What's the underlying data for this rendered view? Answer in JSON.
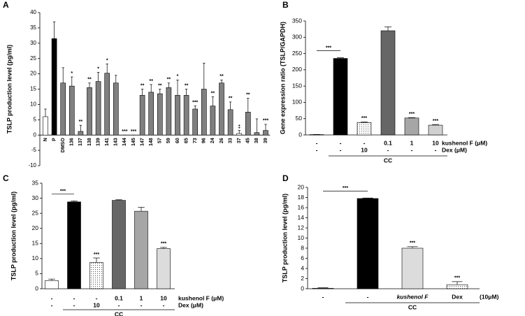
{
  "chart_data": [
    {
      "type": "bar",
      "panel": "A",
      "ylabel": "TSLP production level (pg/ml)",
      "ylim": [
        -10,
        40
      ],
      "yticks": [
        -10,
        -5,
        0,
        5,
        10,
        15,
        20,
        25,
        30,
        35,
        40
      ],
      "categories": [
        "N",
        "P",
        "DMSO",
        "136",
        "137",
        "138",
        "139",
        "141",
        "143",
        "144",
        "145",
        "147",
        "148",
        "57",
        "59",
        "60",
        "65",
        "73",
        "96",
        "24",
        "26",
        "33",
        "37",
        "45",
        "38",
        "39"
      ],
      "values": [
        6,
        31.5,
        17,
        16,
        1.2,
        15.5,
        17.5,
        20.2,
        17,
        0,
        0,
        13,
        14,
        13.5,
        15.5,
        13,
        13,
        8.5,
        15,
        9.5,
        17,
        8.3,
        0.5,
        7.5,
        0.8,
        1.5
      ],
      "errors": [
        2.5,
        5.5,
        5,
        3,
        2,
        1.5,
        3,
        3,
        2.5,
        0,
        0,
        2,
        2.5,
        1.5,
        1.5,
        5,
        2,
        1,
        8.5,
        3,
        1,
        2.5,
        1,
        4.5,
        4.5,
        2
      ],
      "colors": [
        "#ffffff",
        "#000000",
        "#808080",
        "#808080",
        "#808080",
        "#808080",
        "#808080",
        "#808080",
        "#808080",
        "#808080",
        "#808080",
        "#808080",
        "#808080",
        "#808080",
        "#808080",
        "#808080",
        "#808080",
        "#808080",
        "#808080",
        "#808080",
        "#808080",
        "#808080",
        "#ffffff",
        "#808080",
        "#808080",
        "#808080"
      ],
      "annotations": [
        null,
        null,
        null,
        "*",
        "**",
        "**",
        "*",
        "*",
        null,
        "***",
        "***",
        "**",
        "**",
        "**",
        "**",
        "*",
        "**",
        "***",
        null,
        "**",
        "**",
        "**",
        "‡",
        "**",
        null,
        "***"
      ]
    },
    {
      "type": "bar",
      "panel": "B",
      "ylabel": "Gene expression ratio (TSLP/GAPDH)",
      "ylim": [
        0,
        350
      ],
      "yticks": [
        0,
        50,
        100,
        150,
        200,
        250,
        300,
        350
      ],
      "values": [
        1,
        235,
        38,
        320,
        52,
        30
      ],
      "errors": [
        0.5,
        2,
        2,
        12,
        1,
        2
      ],
      "colors": [
        "#ffffff",
        "#000000",
        "#ffffff",
        "#666666",
        "#a6a6a6",
        "#d0d0d0"
      ],
      "patterns": [
        null,
        null,
        "dots",
        null,
        null,
        null
      ],
      "annotations": [
        null,
        null,
        "***",
        null,
        "***",
        "***"
      ],
      "bracket": "***",
      "rows": [
        {
          "label": "kushenol F (μM)",
          "cells": [
            "-",
            "-",
            "-",
            "0.1",
            "1",
            "10"
          ]
        },
        {
          "label": "Dex (μM)",
          "cells": [
            "-",
            "-",
            "10",
            "-",
            "-",
            "-"
          ]
        }
      ],
      "group_label": "CC"
    },
    {
      "type": "bar",
      "panel": "C",
      "ylabel": "TSLP production level (pg/ml)",
      "ylim": [
        0,
        35
      ],
      "yticks": [
        0,
        5,
        10,
        15,
        20,
        25,
        30,
        35
      ],
      "values": [
        2.7,
        28.8,
        8.7,
        29.3,
        25.7,
        13.3
      ],
      "errors": [
        0.5,
        0.3,
        1.5,
        0.2,
        1.3,
        0.4
      ],
      "colors": [
        "#ffffff",
        "#000000",
        "#ffffff",
        "#666666",
        "#a6a6a6",
        "#dcdcdc"
      ],
      "patterns": [
        null,
        null,
        "dots",
        null,
        null,
        null
      ],
      "annotations": [
        null,
        null,
        "***",
        null,
        null,
        "***"
      ],
      "bracket": "***",
      "rows": [
        {
          "label": "kushenol F (μM)",
          "cells": [
            "-",
            "-",
            "-",
            "0.1",
            "1",
            "10"
          ]
        },
        {
          "label": "Dex (μM)",
          "cells": [
            "-",
            "-",
            "10",
            "-",
            "-",
            "-"
          ]
        }
      ],
      "group_label": "CC"
    },
    {
      "type": "bar",
      "panel": "D",
      "ylabel": "TSLP production level (pg/ml)",
      "ylim": [
        0,
        20
      ],
      "yticks": [
        0,
        2,
        4,
        6,
        8,
        10,
        12,
        14,
        16,
        18,
        20
      ],
      "values": [
        0.1,
        17.8,
        8.0,
        0.8
      ],
      "errors": [
        0.1,
        0.1,
        0.3,
        0.6
      ],
      "colors": [
        "#ffffff",
        "#000000",
        "#dcdcdc",
        "#ffffff"
      ],
      "patterns": [
        null,
        null,
        null,
        "dots"
      ],
      "annotations": [
        null,
        null,
        "***",
        "***"
      ],
      "bracket": "***",
      "rows": [
        {
          "label": "(10μM)",
          "cells": [
            "-",
            "-",
            "kushenol F",
            "Dex"
          ]
        }
      ],
      "group_label": "CC"
    }
  ]
}
